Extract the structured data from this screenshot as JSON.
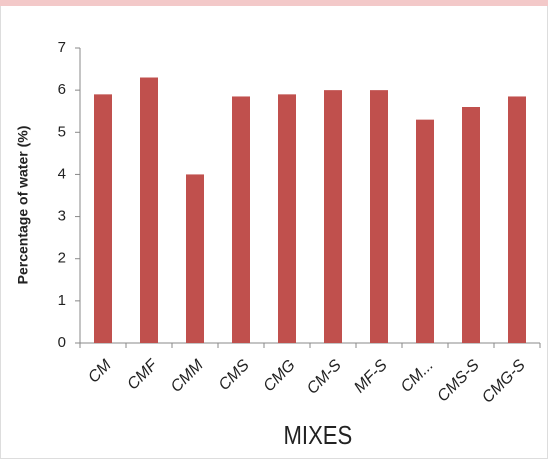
{
  "chart_data": {
    "type": "bar",
    "x_label": "MIXES",
    "y_label": "Percentage of water (%)",
    "categories": [
      "CM",
      "CMF",
      "CMM",
      "CMS",
      "CMG",
      "CM-S",
      "MF-S",
      "CM...",
      "CMS-S",
      "CMG-S"
    ],
    "values": [
      5.9,
      6.3,
      4.0,
      5.85,
      5.9,
      6.0,
      6.0,
      5.3,
      5.6,
      5.85
    ],
    "color": "#c0504d",
    "ylim": [
      0,
      7
    ],
    "yticks": [
      0,
      1,
      2,
      3,
      4,
      5,
      6,
      7
    ],
    "grid": false
  }
}
